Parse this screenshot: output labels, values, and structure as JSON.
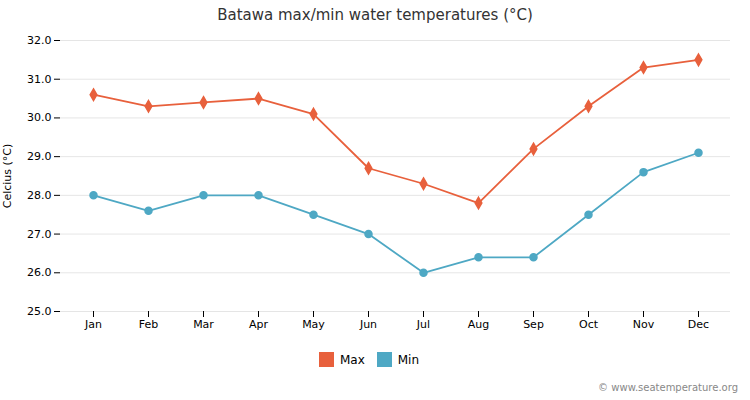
{
  "chart_data": {
    "type": "line",
    "title": "Batawa max/min water temperatures (°C)",
    "ylabel": "Celcius (°C)",
    "categories": [
      "Jan",
      "Feb",
      "Mar",
      "Apr",
      "May",
      "Jun",
      "Jul",
      "Aug",
      "Sep",
      "Oct",
      "Nov",
      "Dec"
    ],
    "series": [
      {
        "name": "Max",
        "color": "#e8603c",
        "marker": "diamond",
        "values": [
          30.6,
          30.3,
          30.4,
          30.5,
          30.1,
          28.7,
          28.3,
          27.8,
          29.2,
          30.3,
          31.3,
          31.5
        ]
      },
      {
        "name": "Min",
        "color": "#4ea8c4",
        "marker": "circle",
        "values": [
          28.0,
          27.6,
          28.0,
          28.0,
          27.5,
          27.0,
          26.0,
          26.4,
          26.4,
          27.5,
          28.6,
          29.1
        ]
      }
    ],
    "ylim": [
      25,
      32
    ],
    "yticks": [
      25,
      26,
      27,
      28,
      29,
      30,
      31,
      32
    ],
    "grid": true,
    "legend": "bottom",
    "annotations": [
      "© www.seatemperature.org"
    ]
  }
}
